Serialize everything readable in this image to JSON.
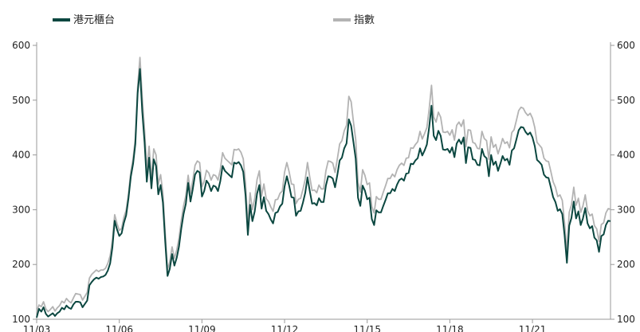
{
  "chart_data": {
    "type": "line",
    "legend": {
      "placement": "top"
    },
    "y_left": {
      "ylim": [
        100,
        600
      ],
      "ticks": [
        100,
        200,
        300,
        400,
        500,
        600
      ]
    },
    "y_right": {
      "ylim": [
        100,
        600
      ],
      "ticks": [
        100,
        200,
        300,
        400,
        500,
        600
      ]
    },
    "x_labels": [
      "11/03",
      "11/06",
      "11/09",
      "11/12",
      "11/15",
      "11/18",
      "11/21"
    ],
    "series": [
      {
        "name": "指數",
        "color": "#b3b3b3",
        "values": [
          114,
          126,
          123,
          132,
          119,
          114,
          118,
          123,
          115,
          121,
          125,
          133,
          130,
          138,
          133,
          130,
          139,
          147,
          146,
          145,
          135,
          142,
          149,
          175,
          182,
          186,
          190,
          187,
          190,
          190,
          193,
          202,
          216,
          244,
          291,
          275,
          262,
          266,
          286,
          299,
          329,
          369,
          393,
          430,
          524,
          578,
          504,
          445,
          373,
          416,
          356,
          411,
          400,
          347,
          364,
          330,
          258,
          191,
          205,
          232,
          211,
          226,
          248,
          280,
          307,
          326,
          363,
          330,
          353,
          381,
          389,
          386,
          342,
          352,
          372,
          367,
          354,
          364,
          362,
          354,
          373,
          404,
          394,
          390,
          386,
          382,
          410,
          409,
          411,
          405,
          393,
          348,
          270,
          331,
          300,
          320,
          355,
          371,
          325,
          347,
          320,
          315,
          305,
          297,
          318,
          319,
          330,
          334,
          368,
          386,
          369,
          347,
          346,
          311,
          319,
          321,
          337,
          356,
          386,
          359,
          335,
          336,
          331,
          345,
          338,
          338,
          371,
          389,
          388,
          385,
          368,
          393,
          420,
          426,
          444,
          454,
          507,
          497,
          461,
          428,
          350,
          332,
          373,
          363,
          346,
          349,
          306,
          294,
          324,
          319,
          319,
          332,
          344,
          357,
          357,
          365,
          360,
          373,
          381,
          385,
          381,
          394,
          395,
          413,
          412,
          419,
          424,
          443,
          429,
          439,
          450,
          484,
          527,
          469,
          460,
          478,
          469,
          442,
          441,
          443,
          436,
          446,
          427,
          454,
          460,
          452,
          464,
          415,
          446,
          445,
          423,
          421,
          412,
          411,
          443,
          430,
          426,
          392,
          433,
          414,
          419,
          402,
          415,
          430,
          421,
          424,
          413,
          441,
          446,
          463,
          481,
          487,
          485,
          477,
          472,
          476,
          467,
          450,
          423,
          418,
          413,
          394,
          389,
          388,
          370,
          351,
          341,
          324,
          327,
          317,
          275,
          223,
          295,
          309,
          341,
          308,
          321,
          295,
          307,
          327,
          298,
          289,
          292,
          271,
          265,
          242,
          273,
          276,
          294,
          302,
          301
        ]
      },
      {
        "name": "港元櫃台",
        "color": "#0b4740",
        "values": [
          103,
          119,
          114,
          122,
          110,
          105,
          108,
          111,
          106,
          111,
          114,
          121,
          118,
          125,
          121,
          119,
          127,
          132,
          132,
          131,
          122,
          128,
          134,
          162,
          168,
          173,
          176,
          174,
          177,
          178,
          181,
          189,
          202,
          231,
          280,
          264,
          252,
          257,
          276,
          290,
          321,
          360,
          384,
          420,
          513,
          557,
          479,
          423,
          351,
          395,
          339,
          392,
          380,
          328,
          345,
          313,
          242,
          179,
          192,
          219,
          198,
          212,
          233,
          265,
          292,
          311,
          349,
          315,
          337,
          364,
          371,
          368,
          324,
          334,
          353,
          347,
          334,
          344,
          342,
          334,
          352,
          380,
          371,
          367,
          363,
          359,
          386,
          384,
          387,
          381,
          369,
          326,
          254,
          309,
          279,
          297,
          329,
          345,
          302,
          323,
          298,
          292,
          282,
          275,
          294,
          296,
          306,
          311,
          342,
          361,
          344,
          323,
          322,
          289,
          297,
          298,
          313,
          331,
          359,
          334,
          311,
          312,
          308,
          321,
          314,
          314,
          344,
          361,
          360,
          357,
          341,
          364,
          390,
          395,
          412,
          421,
          465,
          453,
          424,
          393,
          322,
          307,
          344,
          335,
          319,
          322,
          283,
          272,
          299,
          295,
          295,
          307,
          318,
          330,
          330,
          338,
          334,
          346,
          354,
          357,
          353,
          366,
          367,
          384,
          383,
          390,
          394,
          412,
          399,
          408,
          419,
          451,
          490,
          435,
          427,
          444,
          435,
          410,
          409,
          411,
          404,
          414,
          396,
          421,
          428,
          420,
          432,
          385,
          414,
          413,
          392,
          391,
          382,
          381,
          411,
          398,
          394,
          361,
          400,
          382,
          388,
          371,
          384,
          398,
          390,
          393,
          382,
          408,
          412,
          428,
          445,
          451,
          450,
          442,
          437,
          441,
          432,
          416,
          391,
          387,
          382,
          364,
          359,
          358,
          341,
          323,
          314,
          298,
          301,
          292,
          253,
          203,
          271,
          285,
          315,
          284,
          297,
          272,
          284,
          303,
          275,
          266,
          270,
          249,
          244,
          223,
          252,
          255,
          272,
          280,
          279
        ]
      }
    ]
  }
}
